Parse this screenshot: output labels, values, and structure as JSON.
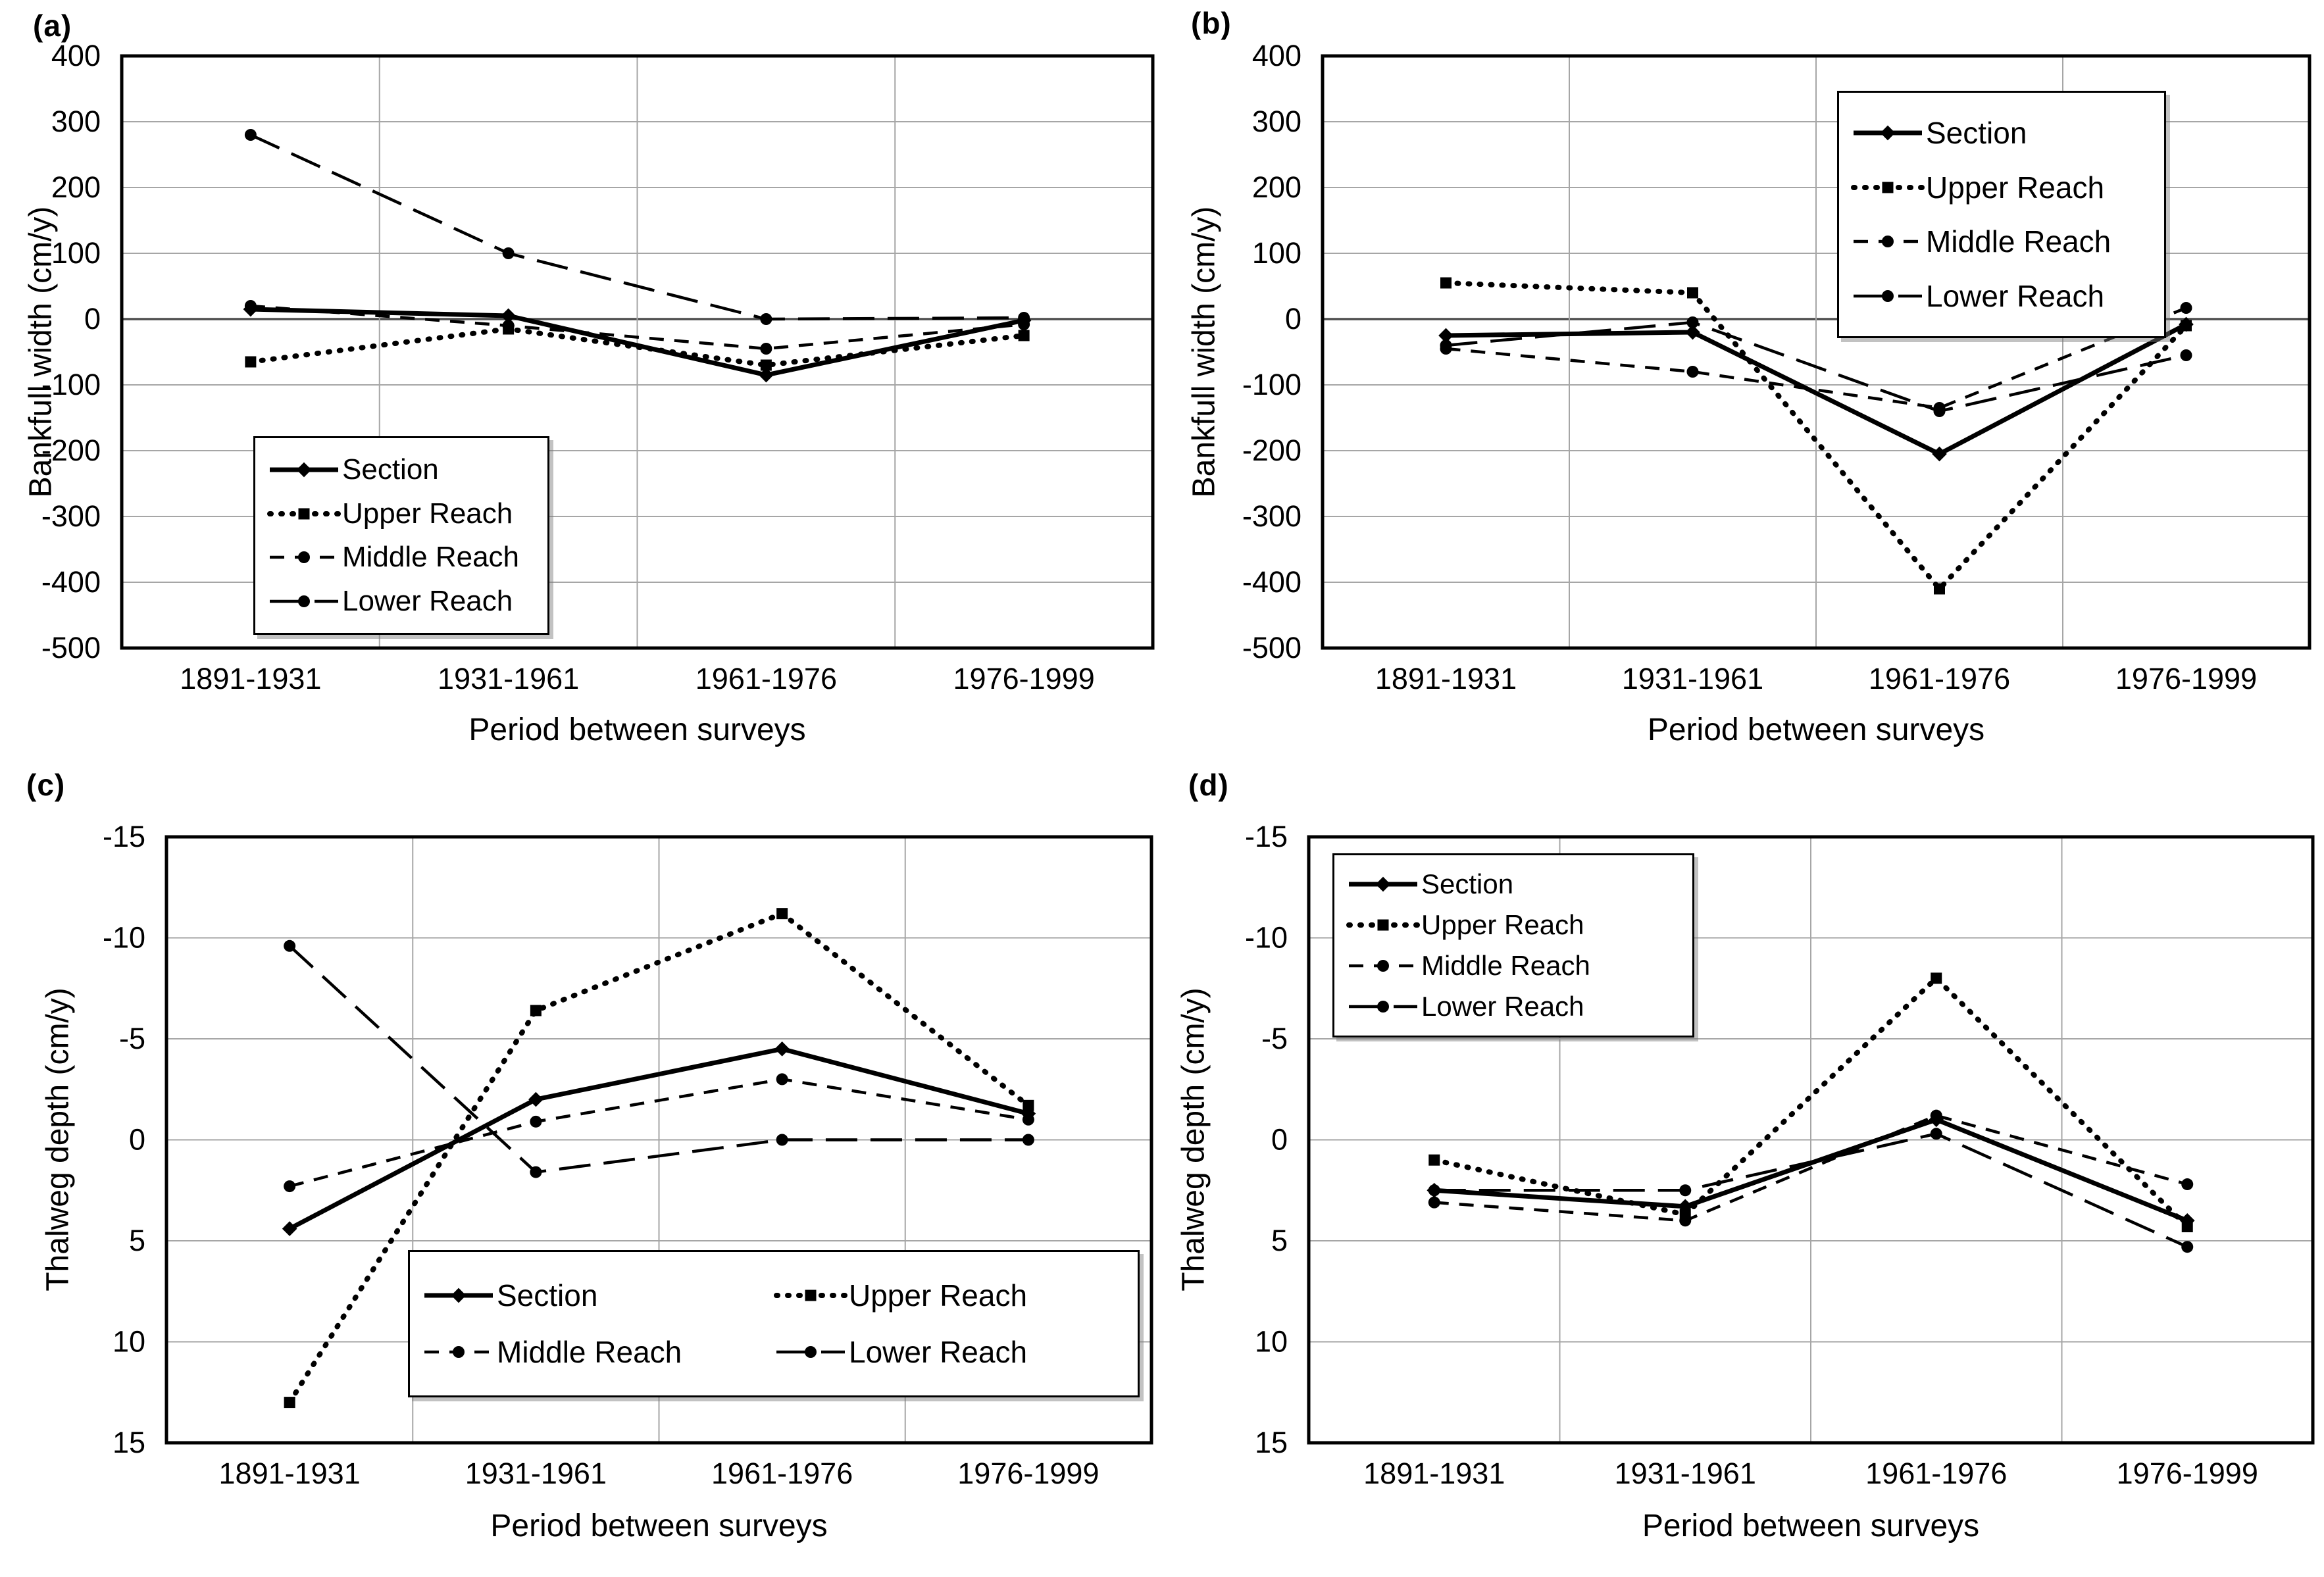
{
  "figure": {
    "background": "#ffffff",
    "series_color": "#000000",
    "grid_color": "#a6a6a6",
    "zero_line_color": "#4d4d4d",
    "categories": [
      "1891-1931",
      "1931-1961",
      "1961-1976",
      "1976-1999"
    ],
    "x_axis_title": "Period between surveys",
    "series_labels": [
      "Section",
      "Upper Reach",
      "Middle Reach",
      "Lower Reach"
    ]
  },
  "chart_data": [
    {
      "panel_letter": "(a)",
      "type": "line",
      "title": "",
      "xlabel": "Period between surveys",
      "ylabel": "Bankfull width (cm/y)",
      "categories": [
        "1891-1931",
        "1931-1961",
        "1961-1976",
        "1976-1999"
      ],
      "ylim": [
        -500,
        400
      ],
      "y_top": 400,
      "y_bottom": -500,
      "yticks": [
        400,
        300,
        200,
        100,
        0,
        -100,
        -200,
        -300,
        -400,
        -500
      ],
      "grid": true,
      "legend_position": "lower-left",
      "series": [
        {
          "name": "Section",
          "style": "solid",
          "values": [
            15,
            5,
            -85,
            -2
          ]
        },
        {
          "name": "Upper Reach",
          "style": "dotted",
          "values": [
            -65,
            -15,
            -70,
            -25
          ]
        },
        {
          "name": "Middle Reach",
          "style": "short-dash",
          "values": [
            20,
            -10,
            -45,
            -8
          ]
        },
        {
          "name": "Lower Reach",
          "style": "long-dash",
          "values": [
            280,
            100,
            0,
            2
          ]
        }
      ]
    },
    {
      "panel_letter": "(b)",
      "type": "line",
      "title": "",
      "xlabel": "Period between surveys",
      "ylabel": "Bankfull width (cm/y)",
      "categories": [
        "1891-1931",
        "1931-1961",
        "1961-1976",
        "1976-1999"
      ],
      "ylim": [
        -500,
        400
      ],
      "y_top": 400,
      "y_bottom": -500,
      "yticks": [
        400,
        300,
        200,
        100,
        0,
        -100,
        -200,
        -300,
        -400,
        -500
      ],
      "grid": true,
      "legend_position": "upper-right",
      "series": [
        {
          "name": "Section",
          "style": "solid",
          "values": [
            -25,
            -20,
            -205,
            -8
          ]
        },
        {
          "name": "Upper Reach",
          "style": "dotted",
          "values": [
            55,
            40,
            -410,
            -10
          ]
        },
        {
          "name": "Middle Reach",
          "style": "short-dash",
          "values": [
            -45,
            -80,
            -135,
            17
          ]
        },
        {
          "name": "Lower Reach",
          "style": "long-dash",
          "values": [
            -40,
            -5,
            -140,
            -55
          ]
        }
      ]
    },
    {
      "panel_letter": "(c)",
      "type": "line",
      "title": "",
      "xlabel": "Period between surveys",
      "ylabel": "Thalweg depth (cm/y)",
      "categories": [
        "1891-1931",
        "1931-1961",
        "1961-1976",
        "1976-1999"
      ],
      "ylim": [
        -15,
        15
      ],
      "y_top": -15,
      "y_bottom": 15,
      "yticks": [
        -15,
        -10,
        -5,
        0,
        5,
        10,
        15
      ],
      "grid": true,
      "legend_position": "lower-right",
      "series": [
        {
          "name": "Section",
          "style": "solid",
          "values": [
            4.4,
            -2.0,
            -4.5,
            -1.3
          ]
        },
        {
          "name": "Upper Reach",
          "style": "dotted",
          "values": [
            13.0,
            -6.4,
            -11.2,
            -1.7
          ]
        },
        {
          "name": "Middle Reach",
          "style": "short-dash",
          "values": [
            2.3,
            -0.9,
            -3.0,
            -1.0
          ]
        },
        {
          "name": "Lower Reach",
          "style": "long-dash",
          "values": [
            -9.6,
            1.6,
            0.0,
            0.0
          ]
        }
      ]
    },
    {
      "panel_letter": "(d)",
      "type": "line",
      "title": "",
      "xlabel": "Period between surveys",
      "ylabel": "Thalweg depth (cm/y)",
      "categories": [
        "1891-1931",
        "1931-1961",
        "1961-1976",
        "1976-1999"
      ],
      "ylim": [
        -15,
        15
      ],
      "y_top": -15,
      "y_bottom": 15,
      "yticks": [
        -15,
        -10,
        -5,
        0,
        5,
        10,
        15
      ],
      "grid": true,
      "legend_position": "upper-left",
      "series": [
        {
          "name": "Section",
          "style": "solid",
          "values": [
            2.5,
            3.3,
            -1.0,
            4.0
          ]
        },
        {
          "name": "Upper Reach",
          "style": "dotted",
          "values": [
            1.0,
            3.7,
            -8.0,
            4.3
          ]
        },
        {
          "name": "Middle Reach",
          "style": "short-dash",
          "values": [
            3.1,
            4.0,
            -1.2,
            2.2
          ]
        },
        {
          "name": "Lower Reach",
          "style": "long-dash",
          "values": [
            2.5,
            2.5,
            -0.3,
            5.3
          ]
        }
      ]
    }
  ]
}
